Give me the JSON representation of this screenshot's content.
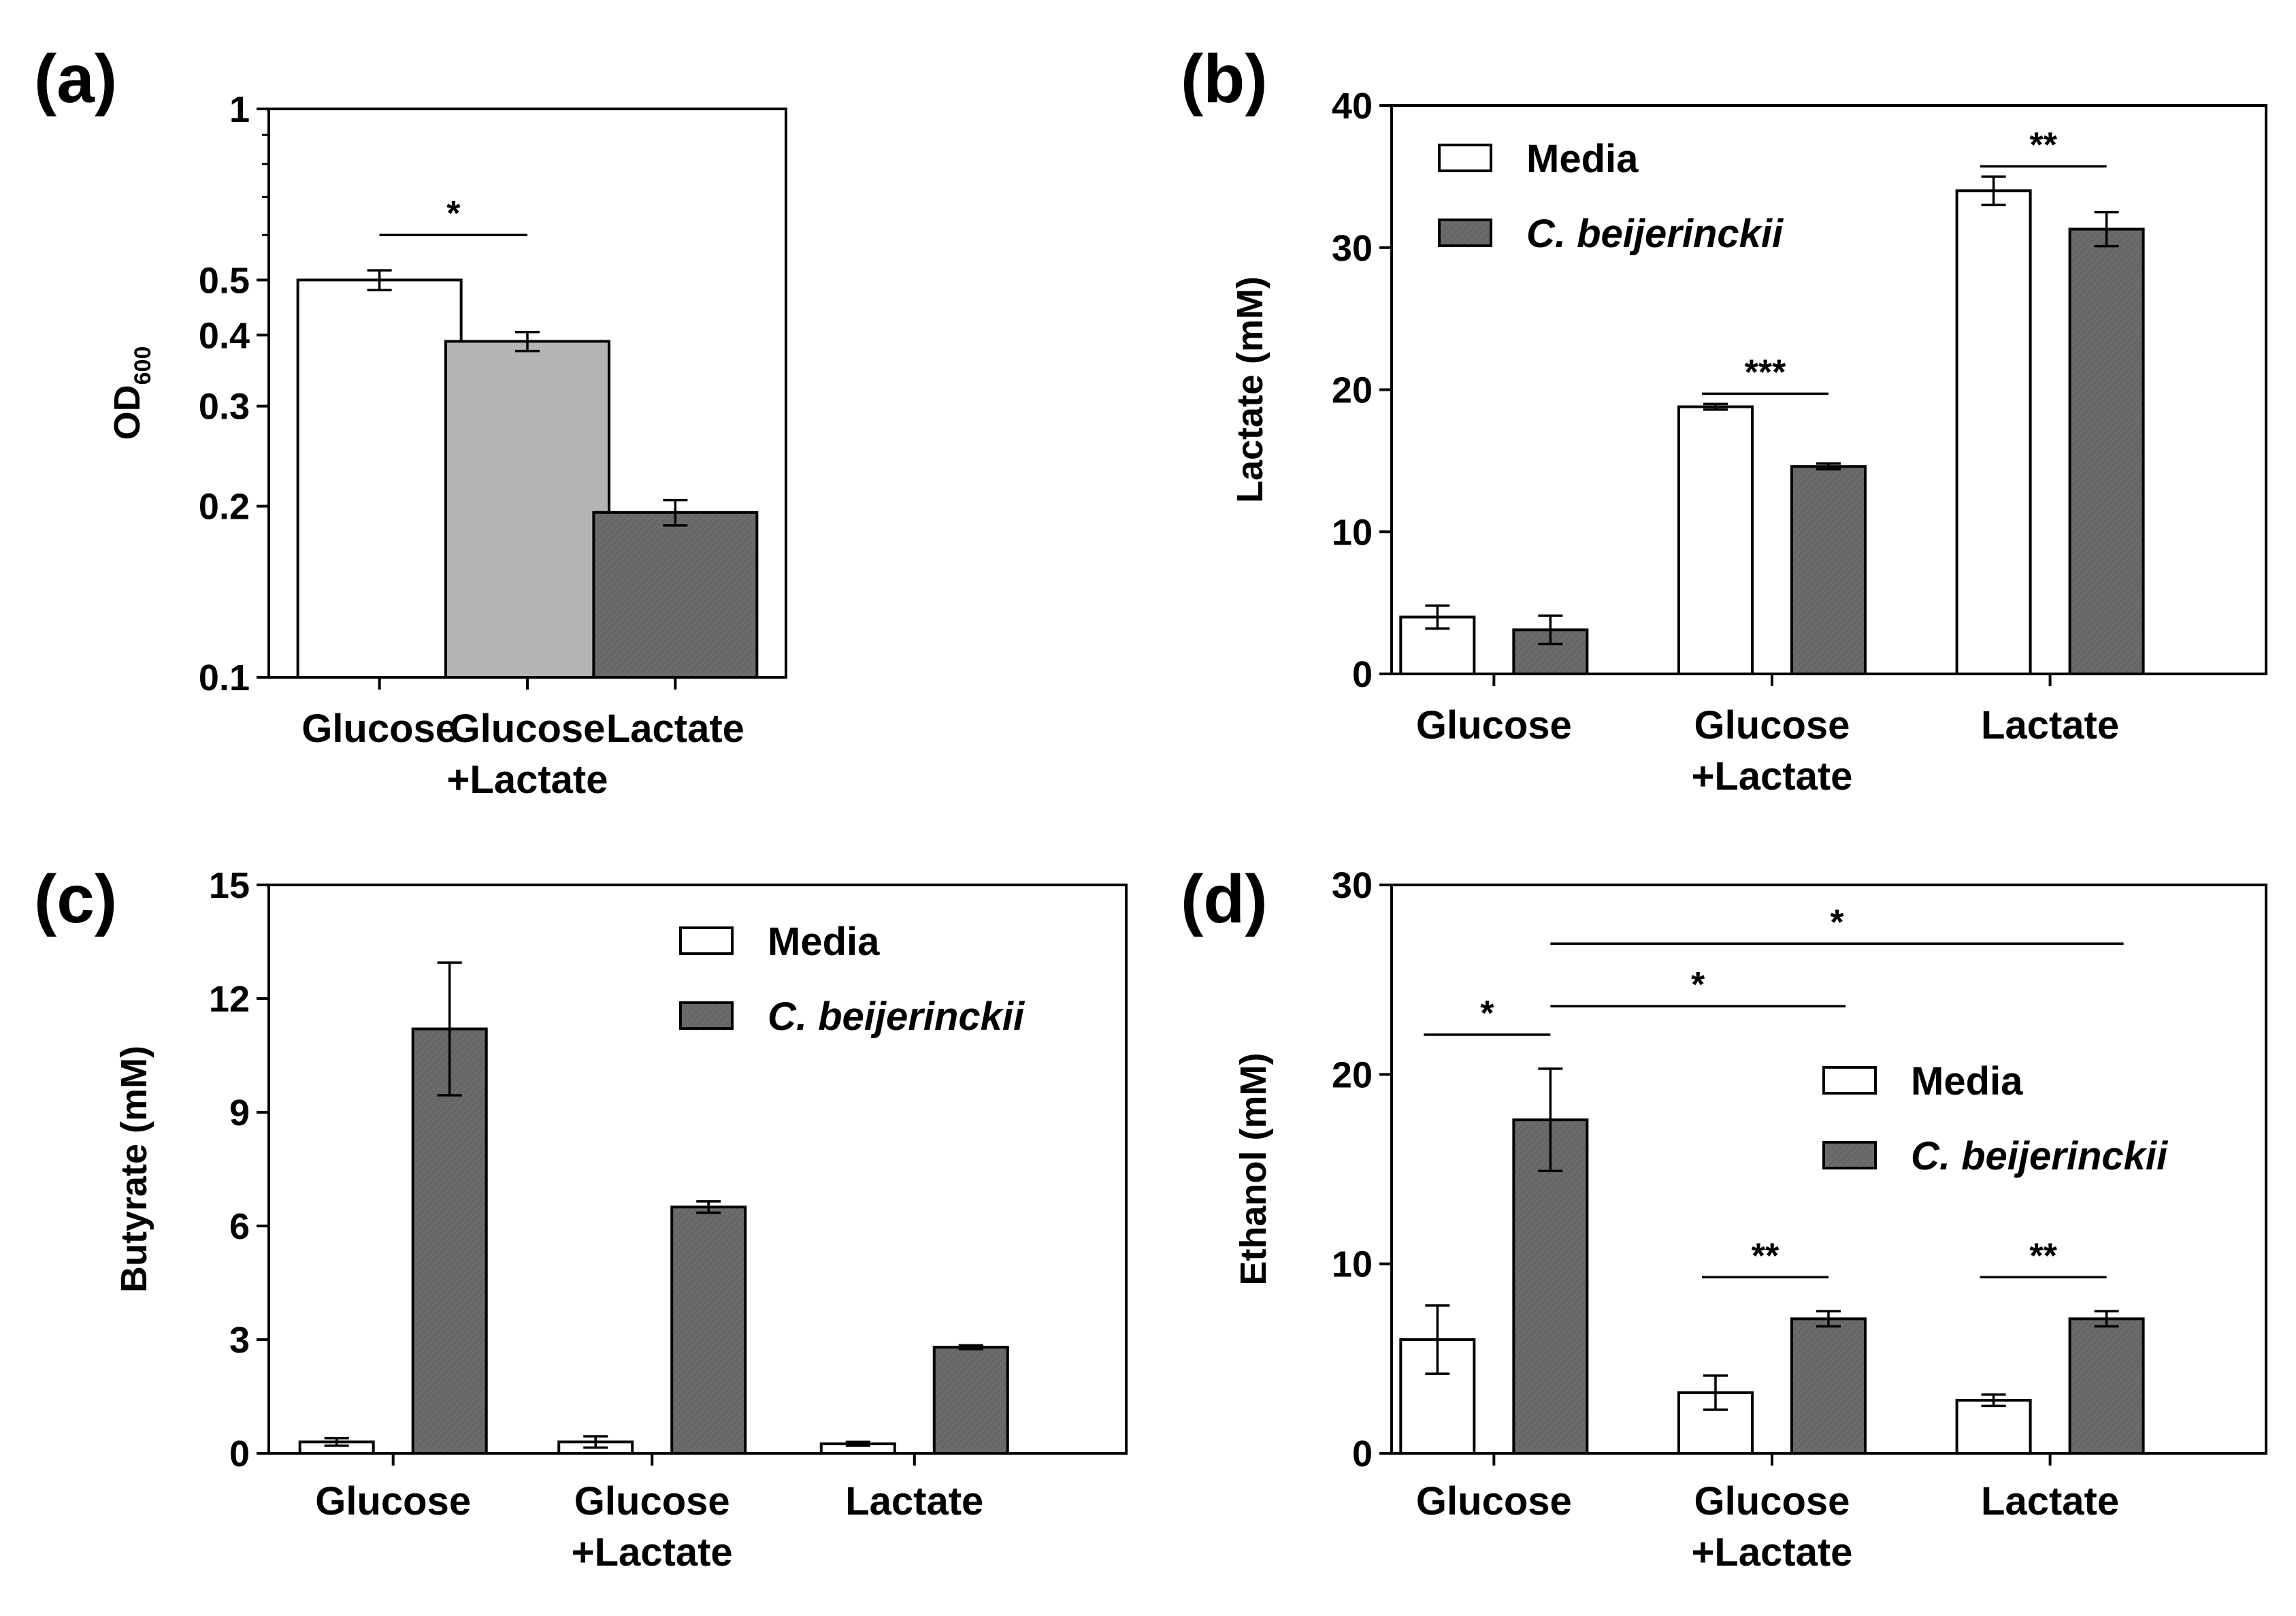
{
  "figure": {
    "colors": {
      "media": "#ffffff",
      "mixed": "#b4b4b4",
      "cb": "#6b6b6b",
      "axis": "#000000"
    }
  },
  "chart_data": [
    {
      "panel": "(a)",
      "type": "bar",
      "scale": "log",
      "ylabel_main": "OD",
      "ylabel_sub": "600",
      "categories": [
        "Glucose",
        "Glucose +Lactate",
        "Lactate"
      ],
      "category_lines": [
        [
          "Glucose"
        ],
        [
          "Glucose",
          "+Lactate"
        ],
        [
          "Lactate"
        ]
      ],
      "values": [
        0.5,
        0.39,
        0.195
      ],
      "errors": [
        0.02,
        0.015,
        0.01
      ],
      "bar_colors": [
        "#ffffff",
        "#b4b4b4",
        "#6b6b6b"
      ],
      "ylim": [
        0.1,
        1
      ],
      "ticks": [
        0.1,
        0.2,
        0.3,
        0.4,
        0.5,
        1
      ],
      "tick_labels": [
        "0.1",
        "0.2",
        "0.3",
        "0.4",
        "0.5",
        "1"
      ],
      "annotations": [
        {
          "from": 0,
          "to": 1,
          "label": "*"
        }
      ]
    },
    {
      "panel": "(b)",
      "type": "bar",
      "ylabel": "Lactate (mM)",
      "categories": [
        "Glucose",
        "Glucose +Lactate",
        "Lactate"
      ],
      "category_lines": [
        [
          "Glucose"
        ],
        [
          "Glucose",
          "+Lactate"
        ],
        [
          "Lactate"
        ]
      ],
      "series": [
        {
          "name": "Media",
          "values": [
            4.0,
            18.8,
            34.0
          ],
          "errors": [
            0.8,
            0.2,
            1.0
          ]
        },
        {
          "name": "C. beijerinckii",
          "values": [
            3.1,
            14.6,
            31.3
          ],
          "errors": [
            1.0,
            0.2,
            1.2
          ]
        }
      ],
      "ylim": [
        0,
        40
      ],
      "ticks": [
        0,
        10,
        20,
        30,
        40
      ],
      "legend": "top-left",
      "annotations": [
        {
          "group": 1,
          "label": "***"
        },
        {
          "group": 2,
          "label": "**"
        }
      ]
    },
    {
      "panel": "(c)",
      "type": "bar",
      "ylabel": "Butyrate (mM)",
      "categories": [
        "Glucose",
        "Glucose +Lactate",
        "Lactate"
      ],
      "category_lines": [
        [
          "Glucose"
        ],
        [
          "Glucose",
          "+Lactate"
        ],
        [
          "Lactate"
        ]
      ],
      "series": [
        {
          "name": "Media",
          "values": [
            0.3,
            0.3,
            0.25
          ],
          "errors": [
            0.1,
            0.15,
            0.05
          ]
        },
        {
          "name": "C. beijerinckii",
          "values": [
            11.2,
            6.5,
            2.8
          ],
          "errors": [
            1.75,
            0.15,
            0.05
          ]
        }
      ],
      "ylim": [
        0,
        15
      ],
      "ticks": [
        0,
        3,
        6,
        9,
        12,
        15
      ],
      "legend": "top-right",
      "annotations": []
    },
    {
      "panel": "(d)",
      "type": "bar",
      "ylabel": "Ethanol (mM)",
      "categories": [
        "Glucose",
        "Glucose +Lactate",
        "Lactate"
      ],
      "category_lines": [
        [
          "Glucose"
        ],
        [
          "Glucose",
          "+Lactate"
        ],
        [
          "Lactate"
        ]
      ],
      "series": [
        {
          "name": "Media",
          "values": [
            6.0,
            3.2,
            2.8
          ],
          "errors": [
            1.8,
            0.9,
            0.3
          ]
        },
        {
          "name": "C. beijerinckii",
          "values": [
            17.6,
            7.1,
            7.1
          ],
          "errors": [
            2.7,
            0.4,
            0.4
          ]
        }
      ],
      "ylim": [
        0,
        30
      ],
      "ticks": [
        0,
        10,
        20,
        30
      ],
      "legend": "center-right",
      "annotations": [
        {
          "group": 0,
          "label": "*"
        },
        {
          "group": 1,
          "label": "**"
        },
        {
          "group": 2,
          "label": "**"
        },
        {
          "span": [
            0,
            1
          ],
          "label": "*"
        },
        {
          "span": [
            0,
            2
          ],
          "label": "*"
        }
      ]
    }
  ]
}
